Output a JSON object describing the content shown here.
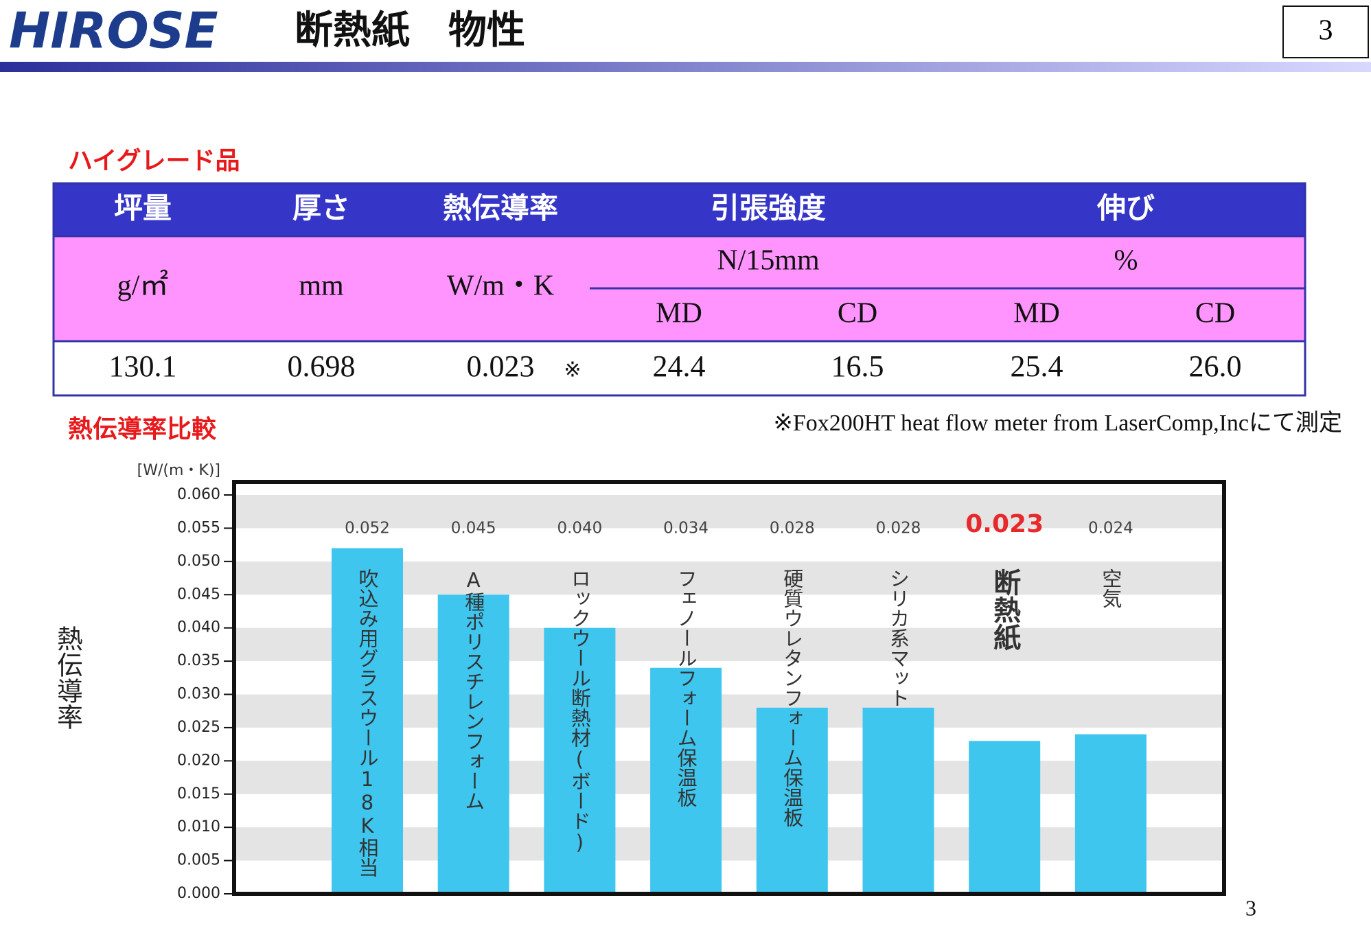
{
  "header": {
    "logo": "HIROSE",
    "title": "断熱紙　物性",
    "page_box": "3"
  },
  "table": {
    "caption": "ハイグレード品",
    "headers": [
      "坪量",
      "厚さ",
      "熱伝導率",
      "引張強度",
      "伸び"
    ],
    "units": [
      "g/㎡",
      "mm",
      "W/m・K",
      "N/15mm",
      "%"
    ],
    "subheaders": [
      "MD",
      "CD",
      "MD",
      "CD"
    ],
    "row": [
      "130.1",
      "0.698",
      "0.023",
      "24.4",
      "16.5",
      "25.4",
      "26.0"
    ],
    "row_note": "※"
  },
  "note": "※Fox200HT heat flow meter from LaserComp,Incにて測定",
  "chart_data": {
    "type": "bar",
    "title": "熱伝導率比較",
    "y_label": "熱伝導率",
    "y_unit": "[W/(m・K)]",
    "categories": [
      "吹込み用グラスウール18K相当",
      "A種ポリスチレンフォーム",
      "ロックウール断熱材(ボード)",
      "フェノールフォーム保温板",
      "硬質ウレタンフォーム保温板",
      "シリカ系マット",
      "断熱紙",
      "空気"
    ],
    "values": [
      0.052,
      0.045,
      0.04,
      0.034,
      0.028,
      0.028,
      0.023,
      0.024
    ],
    "value_labels": [
      "0.052",
      "0.045",
      "0.040",
      "0.034",
      "0.028",
      "0.028",
      "0.023",
      "0.024"
    ],
    "color": "#3ec6ef",
    "highlight_index": 6,
    "highlight_color": "#e8292b",
    "ylim": [
      0,
      0.06
    ],
    "yticks": [
      {
        "value": 0,
        "label": "0.000"
      },
      {
        "value": 0.005,
        "label": "0.005"
      },
      {
        "value": 0.01,
        "label": "0.010"
      },
      {
        "value": 0.015,
        "label": "0.015"
      },
      {
        "value": 0.02,
        "label": "0.020"
      },
      {
        "value": 0.025,
        "label": "0.025"
      },
      {
        "value": 0.03,
        "label": "0.030"
      },
      {
        "value": 0.035,
        "label": "0.035"
      },
      {
        "value": 0.04,
        "label": "0.040"
      },
      {
        "value": 0.045,
        "label": "0.045"
      },
      {
        "value": 0.05,
        "label": "0.050"
      },
      {
        "value": 0.055,
        "label": "0.055"
      },
      {
        "value": 0.06,
        "label": "0.060"
      }
    ],
    "grid": "bands"
  },
  "footer": {
    "page_number": "3"
  }
}
